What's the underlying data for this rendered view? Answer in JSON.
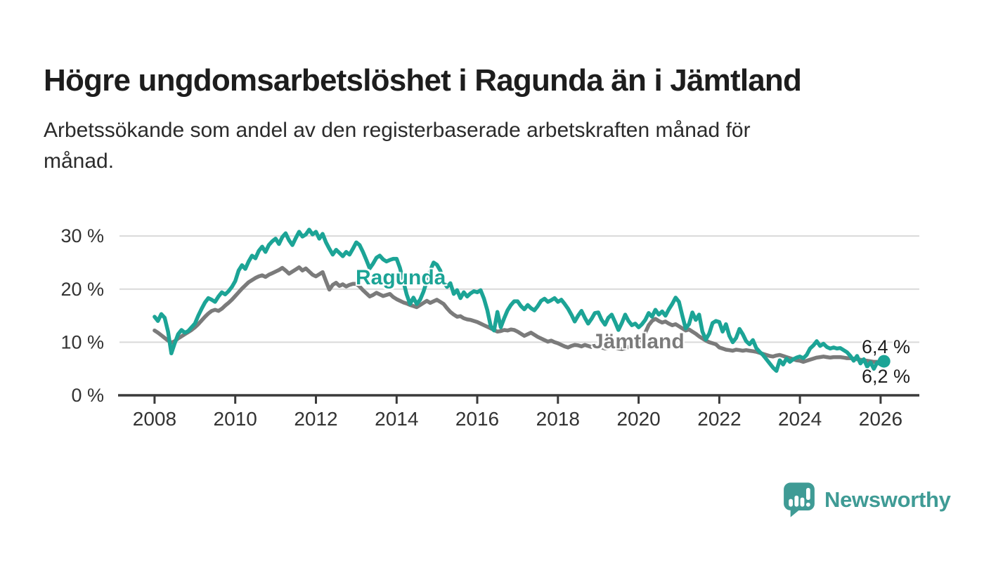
{
  "header": {
    "title": "Högre ungdomsarbetslöshet i Ragunda än i Jämtland",
    "subtitle_line1": "Arbetssökande som andel av den registerbaserade arbetskraften månad för",
    "subtitle_line2": "månad."
  },
  "branding": {
    "logo_text": "Newsworthy",
    "logo_icon": "bar-chart-speech-bubble-icon",
    "brand_color": "#3F9B95"
  },
  "chart_data": {
    "type": "line",
    "title": "Högre ungdomsarbetslöshet i Ragunda än i Jämtland",
    "xlabel": "",
    "ylabel": "Arbetssökande som andel av den registerbaserade arbetskraften",
    "unit": "%",
    "grid": true,
    "x_start": 2008.0,
    "x_step": "1 month",
    "x_axis": {
      "range": [
        2007.13,
        2026.96
      ],
      "ticks": [
        2008,
        2010,
        2012,
        2014,
        2016,
        2018,
        2020,
        2022,
        2024,
        2026
      ],
      "labels": [
        "2008",
        "2010",
        "2012",
        "2014",
        "2016",
        "2018",
        "2020",
        "2022",
        "2024",
        "2026"
      ]
    },
    "y_axis": {
      "range": [
        0,
        32
      ],
      "ticks": [
        0,
        10,
        20,
        30
      ],
      "labels": [
        "0 %",
        "10 %",
        "20 %",
        "30 %"
      ]
    },
    "colors": {
      "axis": "#3a3a3a",
      "gridline": "#d9d9d9",
      "tick_text": "#333333"
    },
    "series": [
      {
        "key": "ragunda",
        "name": "Ragunda",
        "color": "#1CA496",
        "end_label": "6,4 %",
        "end_value": 6.4,
        "end_dot_radius": 9,
        "values": [
          14.8,
          14.0,
          15.3,
          14.6,
          12.0,
          7.9,
          9.8,
          11.5,
          12.3,
          11.8,
          12.1,
          12.8,
          13.5,
          15.0,
          16.3,
          17.5,
          18.3,
          18.0,
          17.6,
          18.6,
          19.4,
          19.0,
          19.6,
          20.4,
          21.5,
          23.5,
          24.5,
          23.8,
          25.2,
          26.3,
          25.8,
          27.2,
          28.0,
          27.0,
          28.3,
          29.0,
          29.5,
          28.5,
          29.8,
          30.5,
          29.2,
          28.3,
          29.6,
          30.8,
          29.9,
          30.3,
          31.2,
          30.3,
          30.8,
          29.5,
          30.4,
          28.8,
          27.6,
          26.5,
          27.4,
          26.8,
          26.2,
          27.0,
          26.5,
          27.6,
          28.8,
          28.3,
          27.0,
          25.5,
          23.9,
          24.8,
          25.9,
          26.3,
          25.6,
          25.2,
          25.5,
          25.7,
          25.7,
          24.0,
          21.5,
          19.0,
          17.2,
          18.4,
          17.2,
          18.0,
          19.5,
          21.5,
          23.5,
          25.0,
          24.6,
          23.5,
          21.4,
          20.4,
          21.1,
          19.1,
          19.8,
          18.3,
          19.4,
          18.6,
          19.2,
          19.6,
          19.4,
          19.8,
          18.2,
          16.0,
          13.0,
          12.2,
          15.7,
          12.8,
          14.5,
          16.0,
          17.0,
          17.7,
          17.7,
          16.8,
          16.2,
          17.0,
          16.4,
          16.0,
          16.8,
          17.8,
          18.2,
          17.6,
          17.9,
          18.3,
          17.6,
          18.0,
          17.2,
          16.3,
          15.2,
          13.9,
          15.0,
          15.9,
          14.6,
          13.5,
          14.4,
          15.5,
          15.6,
          14.2,
          13.3,
          14.6,
          15.2,
          13.8,
          12.3,
          13.6,
          15.2,
          14.0,
          13.2,
          13.5,
          12.8,
          13.4,
          14.2,
          15.5,
          14.8,
          16.1,
          15.2,
          15.8,
          15.0,
          16.2,
          17.2,
          18.4,
          17.6,
          15.0,
          12.6,
          13.4,
          15.6,
          14.2,
          15.2,
          12.0,
          10.5,
          11.6,
          13.6,
          14.0,
          13.8,
          12.0,
          13.4,
          11.2,
          10.0,
          10.8,
          12.5,
          11.5,
          10.2,
          9.6,
          10.4,
          8.9,
          8.2,
          7.6,
          6.8,
          6.0,
          5.2,
          4.6,
          6.6,
          5.8,
          6.9,
          6.3,
          6.8,
          7.1,
          7.3,
          7.0,
          7.6,
          8.8,
          9.4,
          10.2,
          9.3,
          9.7,
          9.1,
          8.8,
          9.0,
          8.8,
          8.9,
          8.5,
          8.1,
          7.4,
          6.5,
          7.4,
          6.0,
          6.8,
          5.4,
          6.2,
          5.0,
          6.2,
          5.8,
          6.4
        ]
      },
      {
        "key": "jamtland",
        "name": "Jämtland",
        "color": "#7B7B7B",
        "end_label": "6,2 %",
        "end_value": 6.2,
        "end_dot_radius": 5.5,
        "values": [
          12.2,
          11.8,
          11.3,
          10.8,
          10.3,
          9.9,
          10.2,
          10.7,
          11.1,
          11.5,
          11.9,
          12.3,
          12.8,
          13.4,
          14.1,
          14.8,
          15.4,
          15.9,
          16.1,
          15.9,
          16.3,
          16.9,
          17.4,
          18.0,
          18.7,
          19.4,
          20.1,
          20.7,
          21.3,
          21.7,
          22.1,
          22.4,
          22.6,
          22.3,
          22.7,
          23.0,
          23.3,
          23.6,
          24.0,
          23.5,
          22.9,
          23.3,
          23.7,
          24.1,
          23.5,
          23.9,
          23.3,
          22.7,
          22.4,
          22.8,
          23.2,
          21.5,
          19.9,
          20.8,
          21.2,
          20.6,
          20.9,
          20.5,
          20.8,
          21.0,
          21.0,
          20.5,
          19.8,
          19.2,
          18.6,
          18.9,
          19.3,
          19.0,
          18.7,
          18.9,
          19.1,
          18.5,
          18.1,
          17.8,
          17.5,
          17.3,
          17.0,
          16.8,
          16.6,
          17.0,
          17.4,
          17.8,
          17.4,
          17.7,
          18.0,
          17.6,
          17.2,
          16.4,
          15.7,
          15.2,
          14.8,
          14.9,
          14.5,
          14.3,
          14.2,
          14.0,
          13.8,
          13.5,
          13.2,
          12.9,
          12.6,
          12.3,
          12.0,
          12.1,
          12.3,
          12.2,
          12.4,
          12.3,
          12.0,
          11.6,
          11.2,
          11.5,
          11.8,
          11.4,
          11.0,
          10.7,
          10.4,
          10.1,
          10.3,
          10.0,
          9.8,
          9.5,
          9.2,
          9.0,
          9.3,
          9.5,
          9.4,
          9.2,
          9.5,
          9.3,
          9.1,
          9.4,
          9.2,
          9.0,
          8.8,
          9.0,
          9.2,
          9.0,
          8.8,
          8.7,
          8.9,
          9.1,
          9.3,
          9.6,
          10.2,
          10.8,
          11.8,
          13.2,
          14.0,
          14.4,
          14.0,
          13.7,
          13.9,
          13.5,
          13.2,
          13.4,
          13.0,
          12.6,
          12.2,
          12.4,
          12.0,
          11.6,
          11.1,
          10.7,
          10.3,
          10.0,
          9.8,
          9.6,
          9.0,
          8.8,
          8.6,
          8.5,
          8.4,
          8.6,
          8.5,
          8.4,
          8.5,
          8.4,
          8.3,
          8.2,
          8.0,
          7.8,
          7.6,
          7.4,
          7.3,
          7.5,
          7.6,
          7.4,
          7.2,
          7.0,
          6.8,
          6.6,
          6.5,
          6.3,
          6.5,
          6.7,
          6.9,
          7.1,
          7.2,
          7.3,
          7.2,
          7.1,
          7.2,
          7.2,
          7.2,
          7.1,
          7.0,
          7.0,
          6.9,
          6.8,
          6.7,
          6.6,
          6.5,
          6.4,
          6.3,
          6.3,
          6.2,
          6.2
        ]
      }
    ],
    "annotations": [
      "Ragunda",
      "Jämtland",
      "6,4 %",
      "6,2 %"
    ],
    "legend_position": "inline-labels"
  }
}
